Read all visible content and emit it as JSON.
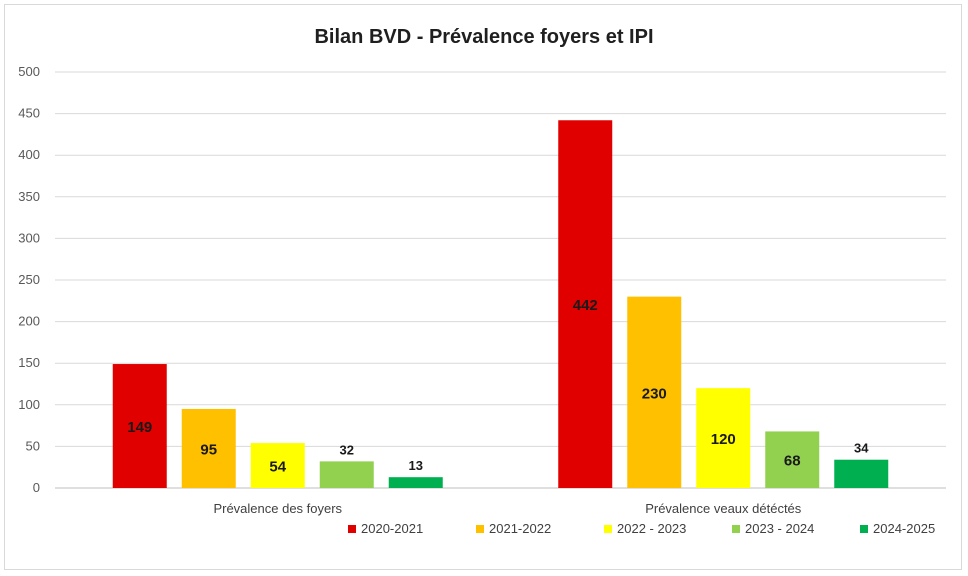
{
  "chart_data": {
    "type": "bar",
    "title": "Bilan BVD - Prévalence foyers et IPI",
    "categories": [
      "Prévalence des foyers",
      "Prévalence veaux détéctés"
    ],
    "series": [
      {
        "name": "2020-2021",
        "color": "#e00000",
        "values": [
          149,
          442
        ]
      },
      {
        "name": "2021-2022",
        "color": "#ffc000",
        "values": [
          95,
          230
        ]
      },
      {
        "name": "2022 - 2023",
        "color": "#ffff00",
        "values": [
          54,
          120
        ]
      },
      {
        "name": "2023 - 2024",
        "color": "#92d050",
        "values": [
          32,
          68
        ]
      },
      {
        "name": "2024-2025",
        "color": "#00b050",
        "values": [
          13,
          34
        ]
      }
    ],
    "ylim": [
      0,
      500
    ],
    "yticks": [
      0,
      50,
      100,
      150,
      200,
      250,
      300,
      350,
      400,
      450,
      500
    ],
    "grid": true,
    "legend_position": "bottom"
  }
}
